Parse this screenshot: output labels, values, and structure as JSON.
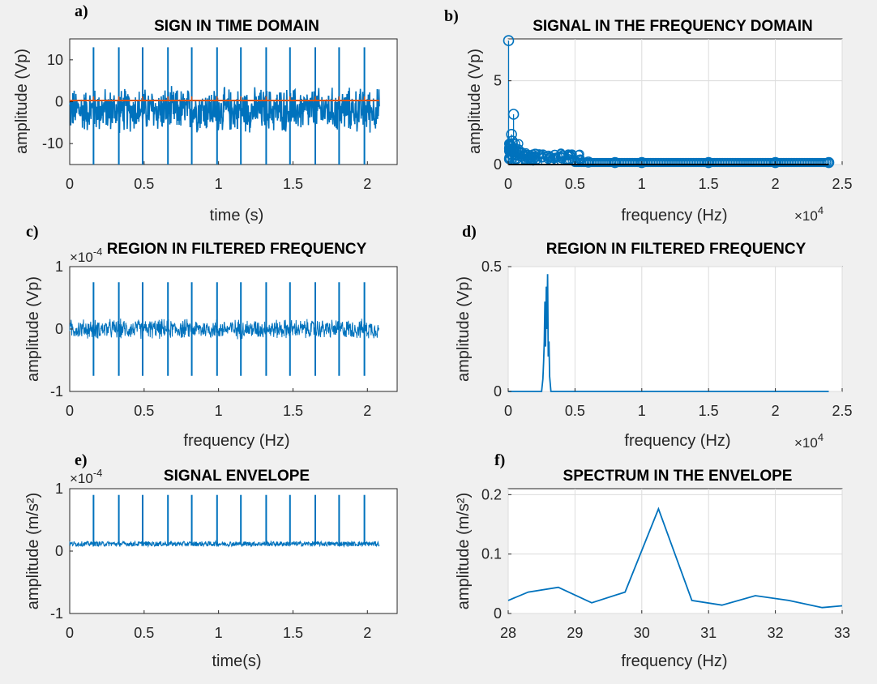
{
  "figure": {
    "background": "#f0f0f0",
    "series_color": "#0072bd",
    "secondary_color": "#d95319",
    "baseline_color": "#000000"
  },
  "chart_data": [
    {
      "id": "a",
      "panel_label": "a)",
      "type": "line",
      "title": "SIGN IN TIME DOMAIN",
      "xlabel": "time (s)",
      "ylabel": "amplitude (Vp)",
      "xlim": [
        0,
        2.2
      ],
      "ylim": [
        -15,
        15
      ],
      "xticks": [
        0,
        0.5,
        1,
        1.5,
        2
      ],
      "xtick_labels": [
        "0",
        "0.5",
        "1",
        "1.5",
        "2"
      ],
      "yticks": [
        -10,
        0,
        10
      ],
      "ytick_labels": [
        "-10",
        "0",
        "10"
      ],
      "grid": false,
      "series": [
        {
          "style": "dense-noise",
          "x_range": [
            0,
            2.08
          ],
          "center": -2,
          "band": 6,
          "spike_times": [
            0.16,
            0.33,
            0.49,
            0.66,
            0.82,
            0.99,
            1.15,
            1.32,
            1.48,
            1.65,
            1.81,
            1.98
          ],
          "spike_amplitude": 15
        },
        {
          "style": "flat",
          "x_range": [
            0,
            2.08
          ],
          "value": 0.3,
          "tick_times": [
            0.16,
            0.33,
            0.49,
            0.66,
            0.82,
            0.99,
            1.15,
            1.32,
            1.48,
            1.65,
            1.81,
            1.98
          ]
        }
      ]
    },
    {
      "id": "b",
      "panel_label": "b)",
      "type": "scatter",
      "title": "SIGNAL IN THE FREQUENCY DOMAIN",
      "xlabel": "frequency (Hz)",
      "ylabel": "amplitude (Vp)",
      "x_exponent_label": "×10",
      "x_exponent": "4",
      "xlim": [
        0,
        2.5
      ],
      "ylim": [
        0,
        7.5
      ],
      "xticks": [
        0,
        0.5,
        1,
        1.5,
        2,
        2.5
      ],
      "xtick_labels": [
        "0",
        "0.5",
        "1",
        "1.5",
        "2",
        "2.5"
      ],
      "yticks": [
        0,
        5
      ],
      "ytick_labels": [
        "0",
        "5"
      ],
      "grid": true,
      "x": [
        0.003,
        0.02,
        0.025,
        0.03,
        0.04,
        0.06,
        0.1,
        0.15,
        0.2,
        0.25,
        0.3,
        0.35,
        0.4,
        0.45,
        0.5,
        0.6,
        0.8,
        1.0,
        1.5,
        2.0,
        2.4
      ],
      "y": [
        7.4,
        0.8,
        1.8,
        1.4,
        3.0,
        0.9,
        0.7,
        0.55,
        0.45,
        0.45,
        0.5,
        0.55,
        0.4,
        0.3,
        0.2,
        0.15,
        0.12,
        0.12,
        0.12,
        0.12,
        0.12
      ],
      "baseline": {
        "from": 0.003,
        "to": 2.4,
        "value": 0
      }
    },
    {
      "id": "c",
      "panel_label": "c)",
      "type": "line",
      "title": "REGION IN FILTERED FREQUENCY",
      "xlabel": "frequency (Hz)",
      "ylabel": "amplitude (Vp)",
      "y_exponent_label": "×10",
      "y_exponent": "-4",
      "xlim": [
        0,
        2.2
      ],
      "ylim": [
        -1,
        1
      ],
      "xticks": [
        0,
        0.5,
        1,
        1.5,
        2
      ],
      "xtick_labels": [
        "0",
        "0.5",
        "1",
        "1.5",
        "2"
      ],
      "yticks": [
        -1,
        0,
        1
      ],
      "ytick_labels": [
        "-1",
        "0",
        "1"
      ],
      "grid": false,
      "series": [
        {
          "style": "noise-with-spikes",
          "x_range": [
            0,
            2.08
          ],
          "center": 0,
          "band": 0.18,
          "spike_times": [
            0.16,
            0.33,
            0.49,
            0.66,
            0.82,
            0.99,
            1.15,
            1.32,
            1.48,
            1.65,
            1.81,
            1.98
          ],
          "spike_amplitude": 0.75
        }
      ]
    },
    {
      "id": "d",
      "panel_label": "d)",
      "type": "line",
      "title": "REGION IN FILTERED FREQUENCY",
      "xlabel": "frequency (Hz)",
      "ylabel": "amplitude (Vp)",
      "x_exponent_label": "×10",
      "x_exponent": "4",
      "xlim": [
        0,
        2.5
      ],
      "ylim": [
        0,
        0.5
      ],
      "xticks": [
        0,
        0.5,
        1,
        1.5,
        2,
        2.5
      ],
      "xtick_labels": [
        "0",
        "0.5",
        "1",
        "1.5",
        "2",
        "2.5"
      ],
      "yticks": [
        0,
        0.5
      ],
      "ytick_labels": [
        "0",
        "0.5"
      ],
      "grid": true,
      "x": [
        0,
        0.25,
        0.26,
        0.265,
        0.27,
        0.275,
        0.28,
        0.285,
        0.29,
        0.295,
        0.3,
        0.305,
        0.31,
        0.32,
        2.4
      ],
      "y": [
        0,
        0,
        0.05,
        0.12,
        0.2,
        0.36,
        0.18,
        0.42,
        0.25,
        0.47,
        0.14,
        0.2,
        0.06,
        0,
        0
      ]
    },
    {
      "id": "e",
      "panel_label": "e)",
      "type": "line",
      "title": "SIGNAL ENVELOPE",
      "xlabel": "time(s)",
      "ylabel": "amplitude (m/s²)",
      "y_exponent_label": "×10",
      "y_exponent": "-4",
      "xlim": [
        0,
        2.2
      ],
      "ylim": [
        -1,
        1
      ],
      "xticks": [
        0,
        0.5,
        1,
        1.5,
        2
      ],
      "xtick_labels": [
        "0",
        "0.5",
        "1",
        "1.5",
        "2"
      ],
      "yticks": [
        -1,
        0,
        1
      ],
      "ytick_labels": [
        "-1",
        "0",
        "1"
      ],
      "grid": false,
      "series": [
        {
          "style": "positive-envelope",
          "x_range": [
            0,
            2.08
          ],
          "center": 0.1,
          "band": 0.08,
          "spike_times": [
            0.16,
            0.33,
            0.49,
            0.66,
            0.82,
            0.99,
            1.15,
            1.32,
            1.48,
            1.65,
            1.81,
            1.98
          ],
          "spike_amplitude": 0.8
        }
      ]
    },
    {
      "id": "f",
      "panel_label": "f)",
      "type": "line",
      "title": "SPECTRUM IN THE ENVELOPE",
      "xlabel": "frequency (Hz)",
      "ylabel": "amplitude (m/s²)",
      "xlim": [
        28,
        33
      ],
      "ylim": [
        0,
        0.21
      ],
      "xticks": [
        28,
        29,
        30,
        31,
        32,
        33
      ],
      "xtick_labels": [
        "28",
        "29",
        "30",
        "31",
        "32",
        "33"
      ],
      "yticks": [
        0,
        0.1,
        0.2
      ],
      "ytick_labels": [
        "0",
        "0.1",
        "0.2"
      ],
      "grid": true,
      "x": [
        28,
        28.3,
        28.75,
        29.25,
        29.75,
        30.25,
        30.75,
        31.2,
        31.7,
        32.2,
        32.7,
        33
      ],
      "y": [
        0.022,
        0.036,
        0.044,
        0.018,
        0.036,
        0.176,
        0.022,
        0.014,
        0.03,
        0.022,
        0.01,
        0.013
      ]
    }
  ]
}
